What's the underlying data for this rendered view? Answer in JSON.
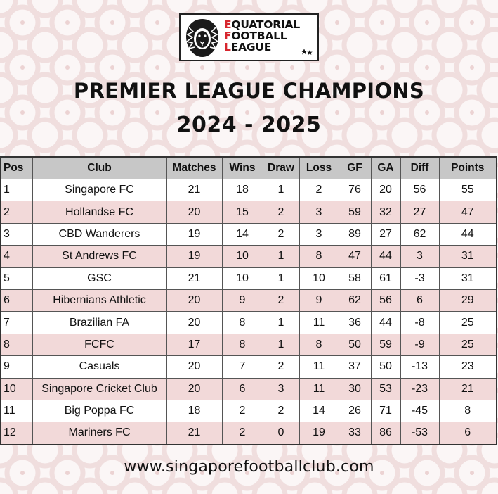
{
  "logo": {
    "line1_initial": "E",
    "line1_rest": "QUATORIAL",
    "line2_initial": "F",
    "line2_rest": "OOTBALL",
    "line3_initial": "L",
    "line3_rest": "EAGUE",
    "icon": "lion-head-icon",
    "stars_icon": "stars-icon"
  },
  "title": "PREMIER LEAGUE CHAMPIONS",
  "season": "2024 - 2025",
  "table": {
    "headers": [
      "Pos",
      "Club",
      "Matches",
      "Wins",
      "Draw",
      "Loss",
      "GF",
      "GA",
      "Diff",
      "Points"
    ],
    "rows": [
      [
        "1",
        "Singapore FC",
        "21",
        "18",
        "1",
        "2",
        "76",
        "20",
        "56",
        "55"
      ],
      [
        "2",
        "Hollandse FC",
        "20",
        "15",
        "2",
        "3",
        "59",
        "32",
        "27",
        "47"
      ],
      [
        "3",
        "CBD Wanderers",
        "19",
        "14",
        "2",
        "3",
        "89",
        "27",
        "62",
        "44"
      ],
      [
        "4",
        "St Andrews FC",
        "19",
        "10",
        "1",
        "8",
        "47",
        "44",
        "3",
        "31"
      ],
      [
        "5",
        "GSC",
        "21",
        "10",
        "1",
        "10",
        "58",
        "61",
        "-3",
        "31"
      ],
      [
        "6",
        "Hibernians Athletic",
        "20",
        "9",
        "2",
        "9",
        "62",
        "56",
        "6",
        "29"
      ],
      [
        "7",
        "Brazilian FA",
        "20",
        "8",
        "1",
        "11",
        "36",
        "44",
        "-8",
        "25"
      ],
      [
        "8",
        "FCFC",
        "17",
        "8",
        "1",
        "8",
        "50",
        "59",
        "-9",
        "25"
      ],
      [
        "9",
        "Casuals",
        "20",
        "7",
        "2",
        "11",
        "37",
        "50",
        "-13",
        "23"
      ],
      [
        "10",
        "Singapore Cricket Club",
        "20",
        "6",
        "3",
        "11",
        "30",
        "53",
        "-23",
        "21"
      ],
      [
        "11",
        "Big Poppa FC",
        "18",
        "2",
        "2",
        "14",
        "26",
        "71",
        "-45",
        "8"
      ],
      [
        "12",
        "Mariners FC",
        "21",
        "2",
        "0",
        "19",
        "33",
        "86",
        "-53",
        "6"
      ]
    ]
  },
  "footer": "www.singaporefootballclub.com",
  "colors": {
    "header_bg": "#c7c7c7",
    "alt_row_bg": "#f2d9d9",
    "accent_red": "#d7262e",
    "pattern": "#f0dede"
  }
}
